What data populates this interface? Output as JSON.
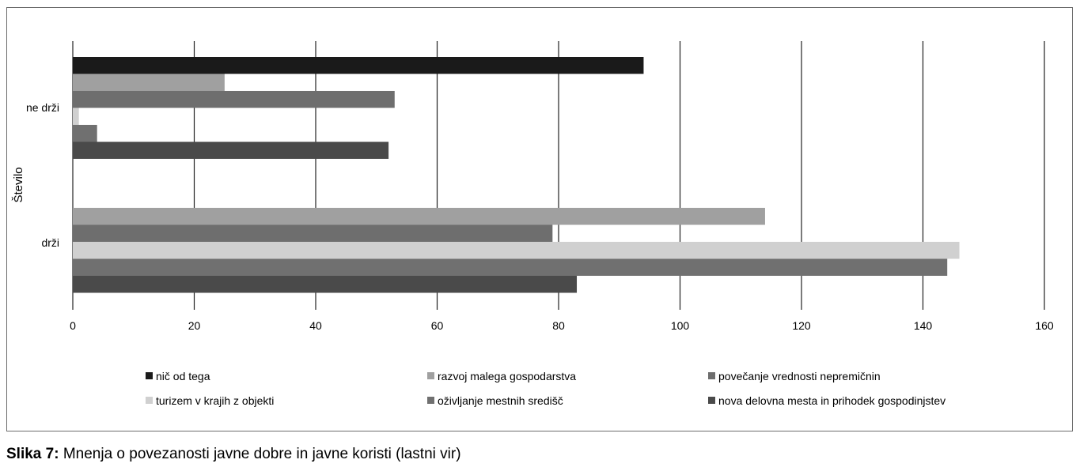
{
  "chart_data": {
    "type": "bar",
    "orientation": "horizontal",
    "categories": [
      "ne drži",
      "drži"
    ],
    "series": [
      {
        "name": "nič od tega",
        "color": "#1a1a1a",
        "values": [
          94,
          0
        ]
      },
      {
        "name": "razvoj malega gospodarstva",
        "color": "#a0a0a0",
        "values": [
          25,
          114
        ]
      },
      {
        "name": "povečanje vrednosti nepremičnin",
        "color": "#6e6e6e",
        "values": [
          53,
          79
        ]
      },
      {
        "name": "turizem v krajih z objekti",
        "color": "#d0d0d0",
        "values": [
          1,
          146
        ]
      },
      {
        "name": "oživljanje mestnih središč",
        "color": "#707070",
        "values": [
          4,
          144
        ]
      },
      {
        "name": "nova delovna mesta in prihodek gospodinjstev",
        "color": "#4a4a4a",
        "values": [
          52,
          83
        ]
      }
    ],
    "xlim": [
      0,
      160
    ],
    "xticks": [
      "0",
      "20",
      "40",
      "60",
      "80",
      "100",
      "120",
      "140",
      "160"
    ],
    "ylabel": "Število",
    "grid": "vertical",
    "legend_position": "bottom"
  },
  "caption": {
    "prefix": "Slika 7:",
    "text": "Mnenja o povezanosti javne dobre in javne koristi (lastni vir)"
  }
}
